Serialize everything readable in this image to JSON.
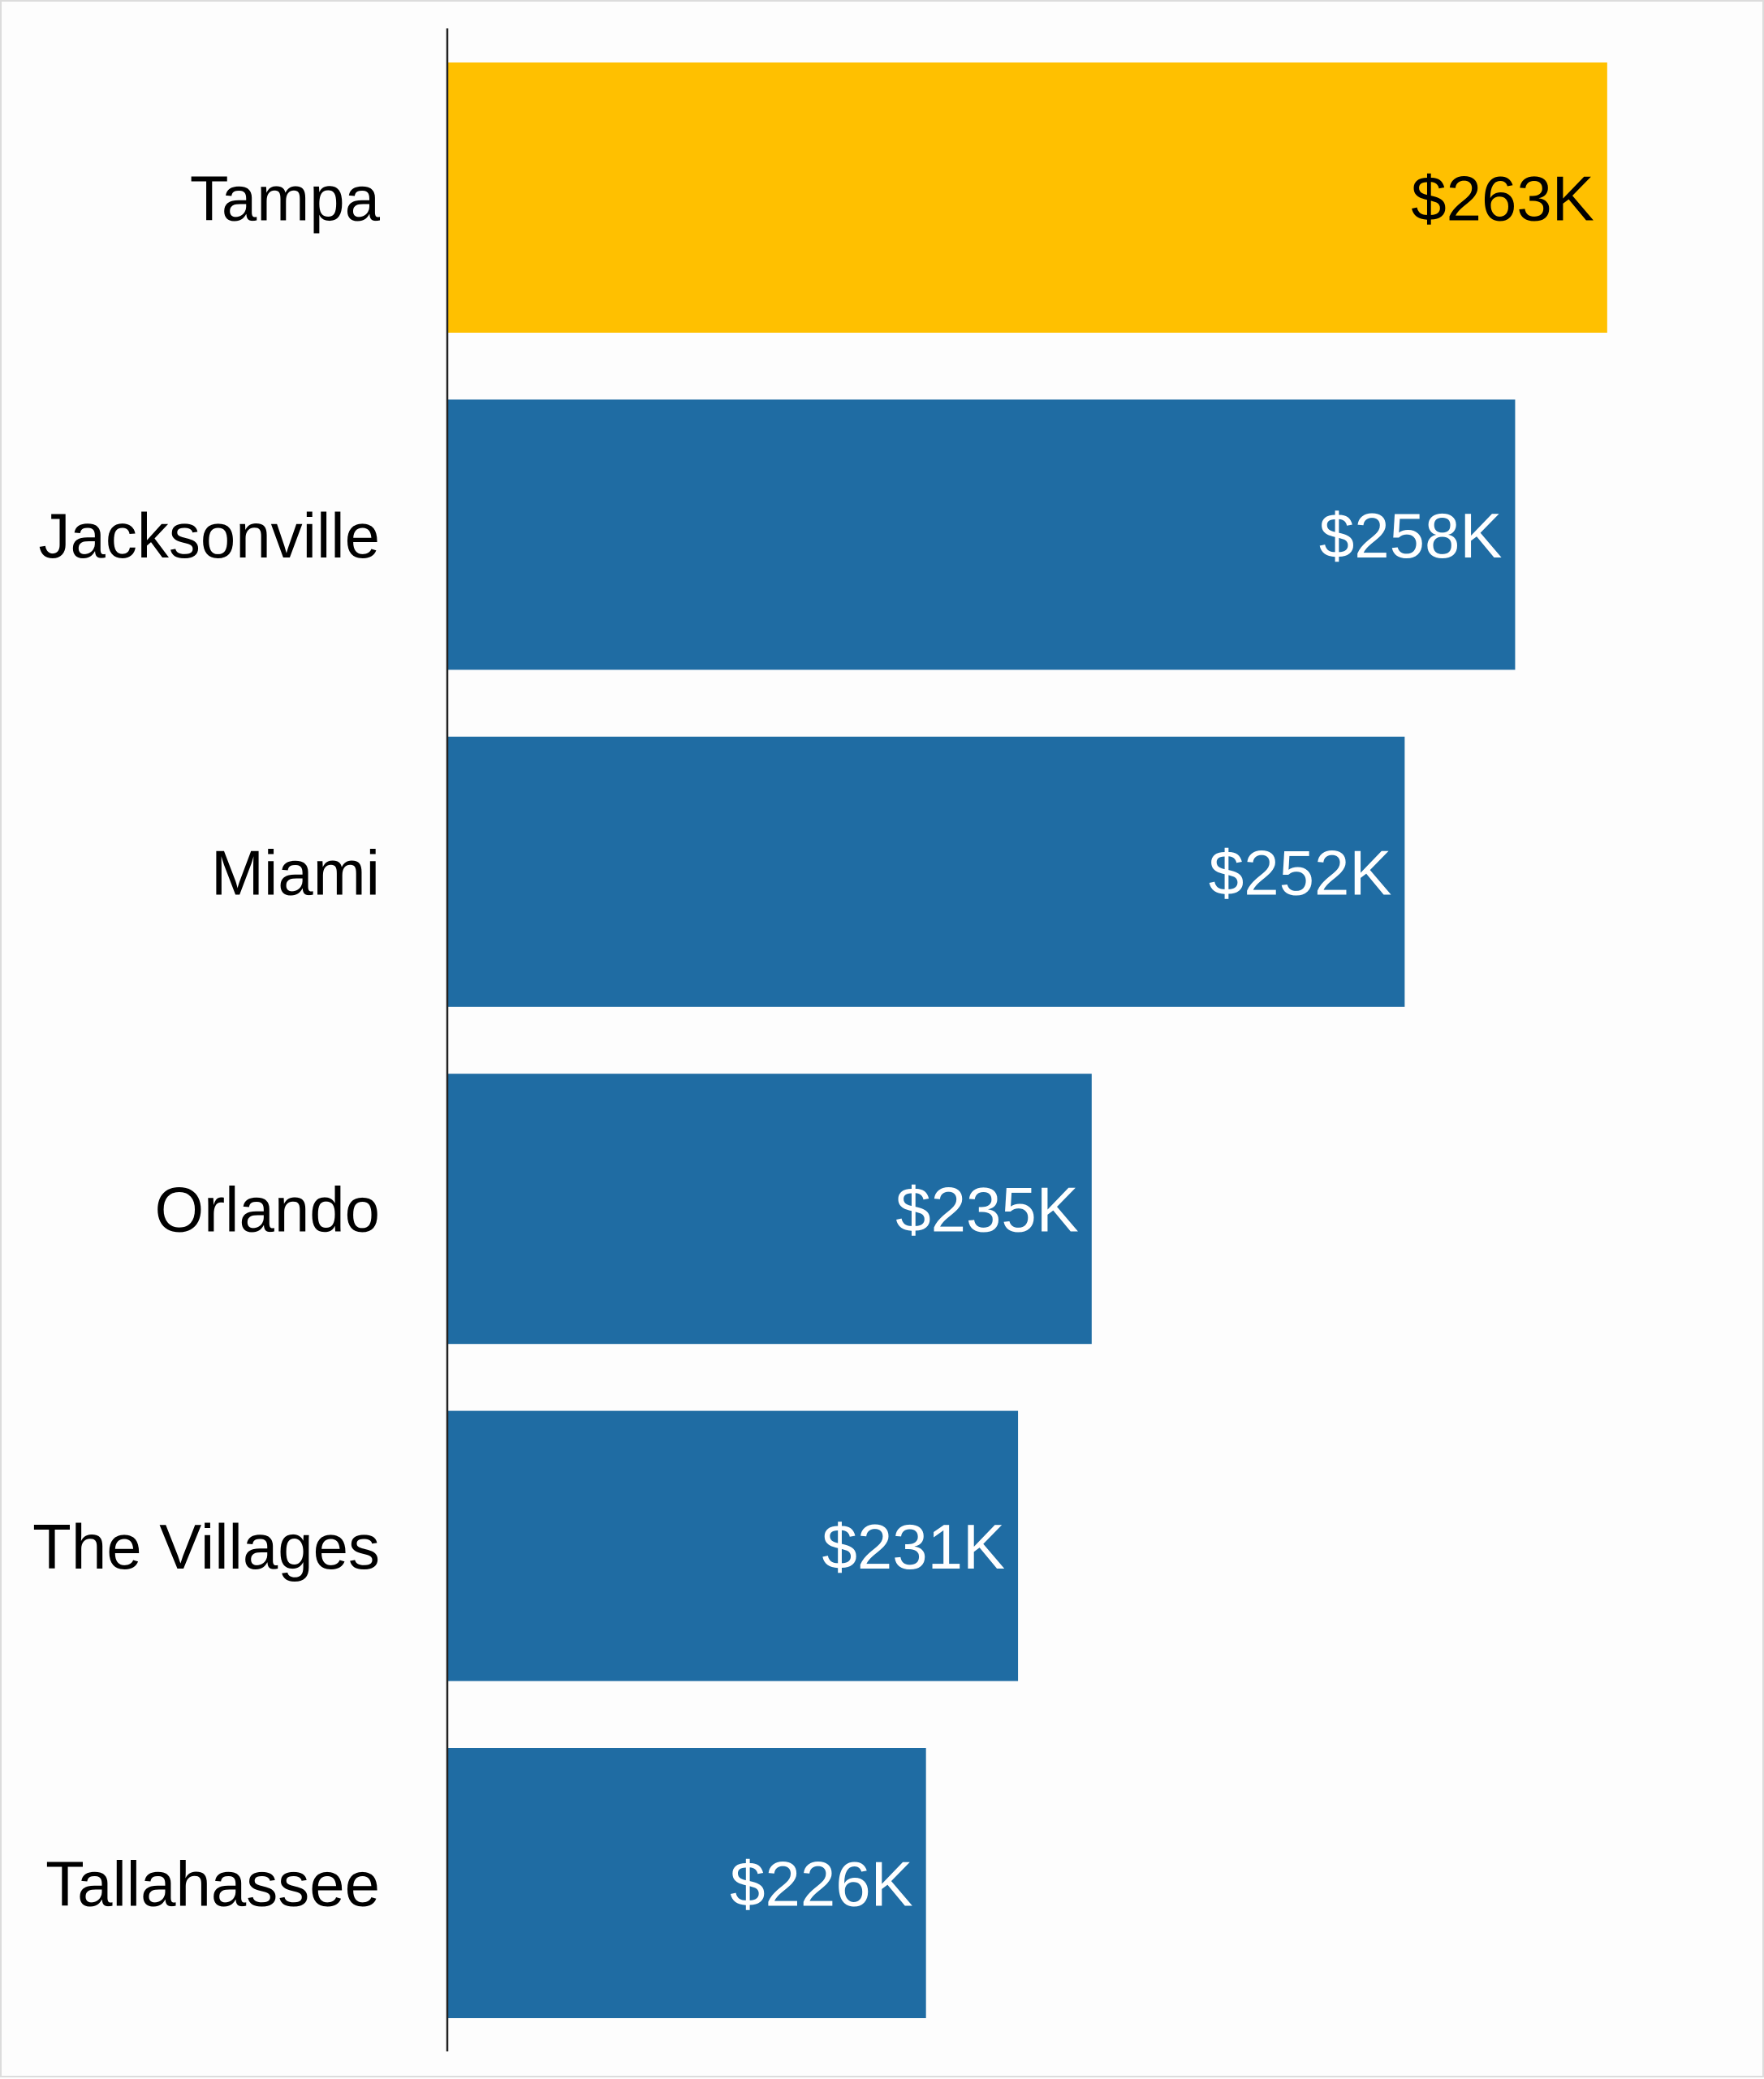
{
  "chart_data": {
    "type": "bar",
    "orientation": "horizontal",
    "title": "",
    "xlabel": "",
    "ylabel": "",
    "xlim": [
      200,
      270
    ],
    "grid": false,
    "categories": [
      "Tampa",
      "Jacksonville",
      "Miami",
      "Orlando",
      "The Villages",
      "Tallahassee"
    ],
    "values": [
      263,
      258,
      252,
      235,
      231,
      226
    ],
    "value_labels": [
      "$263K",
      "$258K",
      "$252K",
      "$235K",
      "$231K",
      "$226K"
    ],
    "unit": "thousand USD",
    "highlight_index": 0,
    "colors": {
      "highlight": "#ffc000",
      "default": "#1f6ca3",
      "highlight_label": "#000000",
      "default_label": "#ffffff",
      "axis": "#222222",
      "category_text": "#000000"
    }
  }
}
